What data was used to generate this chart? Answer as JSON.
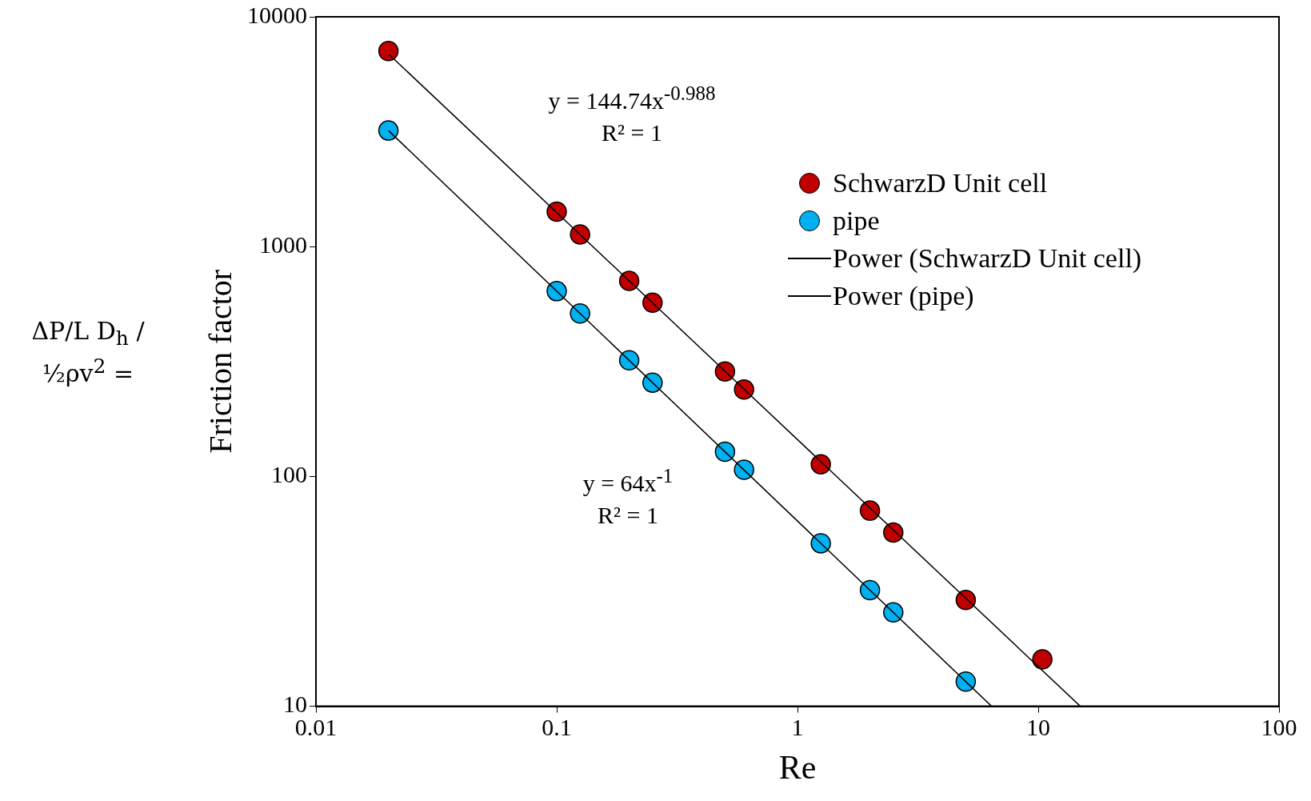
{
  "chart_data": {
    "type": "scatter",
    "xlabel": "Re",
    "ylabel": "Friction factor",
    "log": "xy",
    "grid": false,
    "legend": "top right",
    "marker": "circle",
    "xlim": [
      0.01,
      100
    ],
    "xticks": [
      0.01,
      0.1,
      1,
      10,
      100
    ],
    "ylim": [
      10,
      10000
    ],
    "yticks": [
      10,
      100,
      1000,
      10000
    ],
    "series": [
      {
        "name": "SchwarzD Unit cell",
        "color": "#c00000",
        "x": [
          0.02,
          0.1,
          0.125,
          0.2,
          0.25,
          0.5,
          0.6,
          1.25,
          2,
          2.5,
          5,
          10.4
        ],
        "values": [
          7100,
          1420,
          1130,
          710,
          570,
          286,
          239,
          113,
          71,
          57,
          29,
          16
        ]
      },
      {
        "name": "pipe",
        "color": "#00b0f0",
        "x": [
          0.02,
          0.1,
          0.125,
          0.2,
          0.25,
          0.5,
          0.6,
          1.25,
          2,
          2.5,
          5
        ],
        "values": [
          3200,
          640,
          512,
          320,
          256,
          128,
          107,
          51.2,
          32,
          25.6,
          12.8
        ]
      },
      {
        "name": "Power (SchwarzD Unit cell)",
        "type": "line",
        "color": "#000000",
        "marker": "none",
        "x": [
          0.02,
          14.95
        ],
        "values": [
          6900,
          10
        ]
      },
      {
        "name": "Power (pipe)",
        "type": "line",
        "color": "#000000",
        "marker": "none",
        "x": [
          0.02,
          6.4
        ],
        "values": [
          3200,
          10
        ]
      }
    ],
    "annotations": [
      "y = 144.74x$^{-0.988}$",
      "R² = 1",
      "y = 64x$^{-1}$",
      "R² = 1",
      "ΔP/L D$_{h}$ / ½ρv$^{2}$ ="
    ]
  }
}
